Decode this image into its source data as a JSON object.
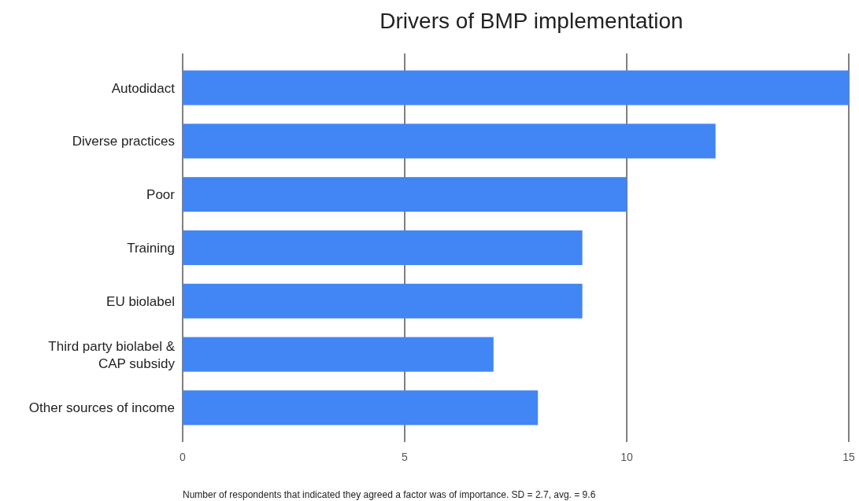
{
  "chart_data": {
    "type": "bar",
    "orientation": "horizontal",
    "title": "Drivers of BMP implementation",
    "xlabel": "Number of respondents that indicated they agreed a factor was of importance. SD = 2.7, avg. = 9.6",
    "categories": [
      "Autodidact",
      "Diverse practices",
      "Poor",
      "Training",
      "EU biolabel",
      "Third party biolabel & CAP subsidy",
      "Other sources of income"
    ],
    "values": [
      15,
      12,
      10,
      9,
      9,
      7,
      8
    ],
    "color": "#4285f4",
    "xlim": [
      0,
      15
    ],
    "xticks": [
      0,
      5,
      10,
      15
    ],
    "grid": "x"
  }
}
